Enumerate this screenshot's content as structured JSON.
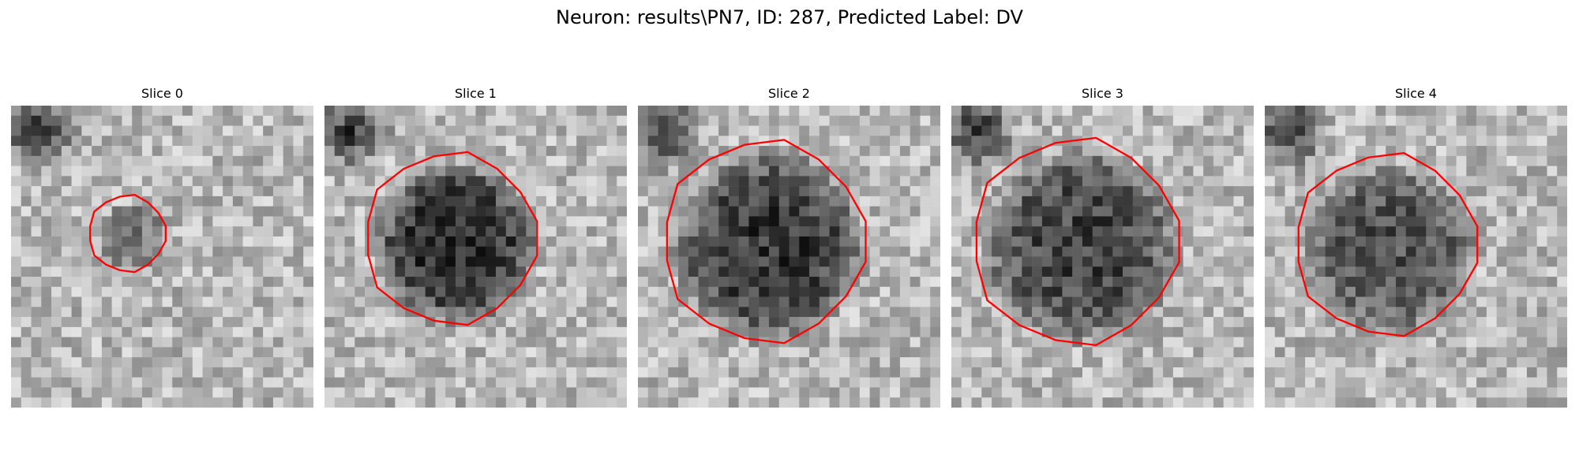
{
  "figure": {
    "title": "Neuron: results\\PN7, ID: 287, Predicted Label: DV"
  },
  "colors": {
    "contour": "#ff0000",
    "background": "#ffffff"
  },
  "panels": [
    {
      "title": "Slice 0"
    },
    {
      "title": "Slice 1"
    },
    {
      "title": "Slice 2"
    },
    {
      "title": "Slice 3"
    },
    {
      "title": "Slice 4"
    }
  ]
}
